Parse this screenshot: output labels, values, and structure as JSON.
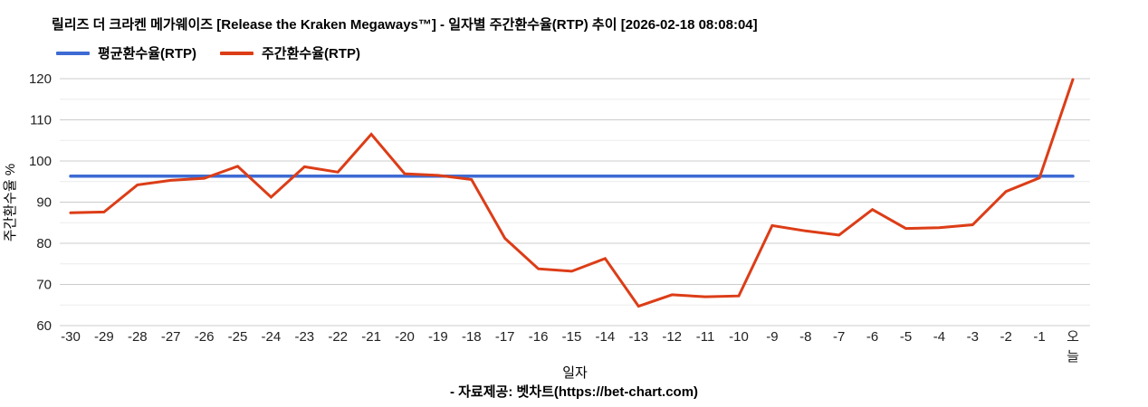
{
  "header": {
    "title": "릴리즈 더 크라켄 메가웨이즈 [Release the Kraken Megaways™] - 일자별 주간환수율(RTP) 추이 [2026-02-18 08:08:04]"
  },
  "legend": {
    "items": [
      {
        "label": "평균환수율(RTP)",
        "color": "#3e6bd3"
      },
      {
        "label": "주간환수율(RTP)",
        "color": "#dc3d17"
      }
    ]
  },
  "chart_data": {
    "type": "line",
    "title": "릴리즈 더 크라켄 메가웨이즈 [Release the Kraken Megaways™] - 일자별 주간환수율(RTP) 추이 [2026-02-18 08:08:04]",
    "xlabel": "일자",
    "ylabel": "주간환수율 %",
    "ylim": [
      60,
      120
    ],
    "yticks": [
      60,
      70,
      80,
      90,
      100,
      110,
      120
    ],
    "minor_gridline_step": 5,
    "grid": true,
    "legend_position": "top-left",
    "categories": [
      "-30",
      "-29",
      "-28",
      "-27",
      "-26",
      "-25",
      "-24",
      "-23",
      "-22",
      "-21",
      "-20",
      "-19",
      "-18",
      "-17",
      "-16",
      "-15",
      "-14",
      "-13",
      "-12",
      "-11",
      "-10",
      "-9",
      "-8",
      "-7",
      "-6",
      "-5",
      "-4",
      "-3",
      "-2",
      "-1",
      "오늘"
    ],
    "series": [
      {
        "name": "평균환수율(RTP)",
        "color": "#3e6bd3",
        "values": [
          96.3,
          96.3,
          96.3,
          96.3,
          96.3,
          96.3,
          96.3,
          96.3,
          96.3,
          96.3,
          96.3,
          96.3,
          96.3,
          96.3,
          96.3,
          96.3,
          96.3,
          96.3,
          96.3,
          96.3,
          96.3,
          96.3,
          96.3,
          96.3,
          96.3,
          96.3,
          96.3,
          96.3,
          96.3,
          96.3,
          96.3
        ]
      },
      {
        "name": "주간환수율(RTP)",
        "color": "#dc3d17",
        "values": [
          87.4,
          87.6,
          94.2,
          95.3,
          95.8,
          98.7,
          91.2,
          98.6,
          97.3,
          106.5,
          96.9,
          96.5,
          95.5,
          81.2,
          73.8,
          73.2,
          76.3,
          64.7,
          67.5,
          67.0,
          67.2,
          84.3,
          83.0,
          82.0,
          88.2,
          83.6,
          83.8,
          84.5,
          92.6,
          95.9,
          119.8
        ]
      }
    ]
  },
  "footer": {
    "credit": "- 자료제공: 벳차트(https://bet-chart.com)"
  }
}
